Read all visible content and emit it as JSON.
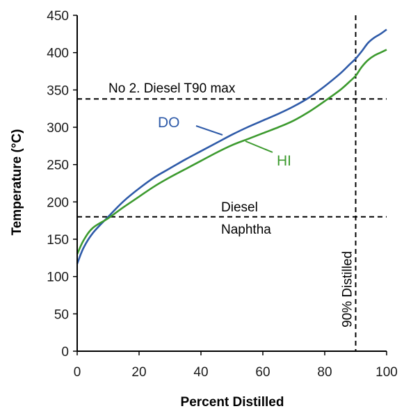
{
  "chart_data": {
    "type": "line",
    "title": "",
    "xlabel": "Percent Distilled",
    "ylabel": "Temperature (°C)",
    "xlim": [
      0,
      100
    ],
    "ylim": [
      0,
      450
    ],
    "x_ticks": [
      0,
      20,
      40,
      60,
      80,
      100
    ],
    "y_ticks": [
      0,
      50,
      100,
      150,
      200,
      250,
      300,
      350,
      400,
      450
    ],
    "grid": false,
    "series": [
      {
        "name": "DO",
        "color": "#2e5aa8",
        "x": [
          0,
          2,
          5,
          10,
          15,
          20,
          25,
          30,
          35,
          40,
          45,
          50,
          55,
          60,
          65,
          70,
          75,
          80,
          85,
          88,
          90,
          92,
          94,
          96,
          98,
          100
        ],
        "y": [
          117,
          138,
          158,
          180,
          201,
          218,
          233,
          245,
          257,
          268,
          279,
          290,
          300,
          309,
          318,
          328,
          340,
          355,
          372,
          384,
          392,
          402,
          413,
          420,
          425,
          431
        ]
      },
      {
        "name": "HI",
        "color": "#3c9a2e",
        "x": [
          0,
          2,
          5,
          10,
          15,
          20,
          25,
          30,
          35,
          40,
          45,
          50,
          55,
          60,
          65,
          70,
          75,
          80,
          85,
          88,
          90,
          92,
          94,
          96,
          98,
          100
        ],
        "y": [
          130,
          148,
          165,
          178,
          193,
          207,
          221,
          233,
          244,
          255,
          266,
          276,
          284,
          292,
          300,
          309,
          321,
          335,
          350,
          361,
          369,
          381,
          390,
          396,
          400,
          404
        ]
      }
    ],
    "reference_lines": [
      {
        "orientation": "horizontal",
        "value": 338,
        "label": "No 2. Diesel T90 max",
        "style": "dashed"
      },
      {
        "orientation": "horizontal",
        "value": 180,
        "label_above": "Diesel",
        "label_below": "Naphtha",
        "style": "dashed"
      },
      {
        "orientation": "vertical",
        "value": 90,
        "label": "90% Distilled",
        "style": "dashed"
      }
    ]
  }
}
